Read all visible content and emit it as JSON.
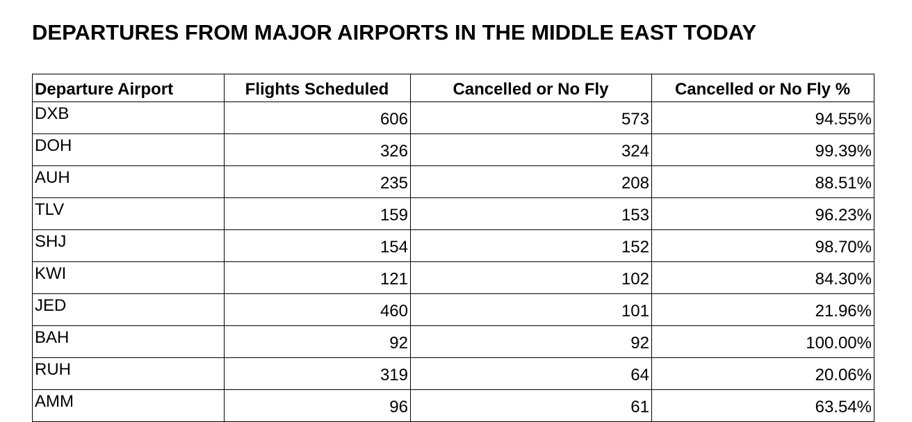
{
  "page": {
    "title": "DEPARTURES FROM MAJOR AIRPORTS IN THE MIDDLE EAST TODAY"
  },
  "colors": {
    "background": "#ffffff",
    "text": "#000000",
    "table_border": "#000000"
  },
  "table": {
    "columns": [
      {
        "label": "Departure Airport",
        "align": "left"
      },
      {
        "label": "Flights Scheduled",
        "align": "center"
      },
      {
        "label": "Cancelled or No Fly",
        "align": "center"
      },
      {
        "label": "Cancelled or No Fly %",
        "align": "center"
      }
    ],
    "rows": [
      {
        "airport": "DXB",
        "flights_scheduled": "606",
        "cancelled_or_no_fly": "573",
        "cancelled_pct": "94.55%"
      },
      {
        "airport": "DOH",
        "flights_scheduled": "326",
        "cancelled_or_no_fly": "324",
        "cancelled_pct": "99.39%"
      },
      {
        "airport": "AUH",
        "flights_scheduled": "235",
        "cancelled_or_no_fly": "208",
        "cancelled_pct": "88.51%"
      },
      {
        "airport": "TLV",
        "flights_scheduled": "159",
        "cancelled_or_no_fly": "153",
        "cancelled_pct": "96.23%"
      },
      {
        "airport": "SHJ",
        "flights_scheduled": "154",
        "cancelled_or_no_fly": "152",
        "cancelled_pct": "98.70%"
      },
      {
        "airport": "KWI",
        "flights_scheduled": "121",
        "cancelled_or_no_fly": "102",
        "cancelled_pct": "84.30%"
      },
      {
        "airport": "JED",
        "flights_scheduled": "460",
        "cancelled_or_no_fly": "101",
        "cancelled_pct": "21.96%"
      },
      {
        "airport": "BAH",
        "flights_scheduled": "92",
        "cancelled_or_no_fly": "92",
        "cancelled_pct": "100.00%"
      },
      {
        "airport": "RUH",
        "flights_scheduled": "319",
        "cancelled_or_no_fly": "64",
        "cancelled_pct": "20.06%"
      },
      {
        "airport": "AMM",
        "flights_scheduled": "96",
        "cancelled_or_no_fly": "61",
        "cancelled_pct": "63.54%"
      }
    ]
  },
  "chart_data": {
    "type": "table",
    "title": "DEPARTURES FROM MAJOR AIRPORTS IN THE MIDDLE EAST TODAY",
    "columns": [
      "Departure Airport",
      "Flights Scheduled",
      "Cancelled or No Fly",
      "Cancelled or No Fly %"
    ],
    "rows": [
      [
        "DXB",
        606,
        573,
        "94.55%"
      ],
      [
        "DOH",
        326,
        324,
        "99.39%"
      ],
      [
        "AUH",
        235,
        208,
        "88.51%"
      ],
      [
        "TLV",
        159,
        153,
        "96.23%"
      ],
      [
        "SHJ",
        154,
        152,
        "98.70%"
      ],
      [
        "KWI",
        121,
        102,
        "84.30%"
      ],
      [
        "JED",
        460,
        101,
        "21.96%"
      ],
      [
        "BAH",
        92,
        92,
        "100.00%"
      ],
      [
        "RUH",
        319,
        64,
        "20.06%"
      ],
      [
        "AMM",
        96,
        61,
        "63.54%"
      ]
    ],
    "layout_hints": {
      "number_alignment": "right",
      "header_style": "bold",
      "grid": "all-borders"
    }
  }
}
